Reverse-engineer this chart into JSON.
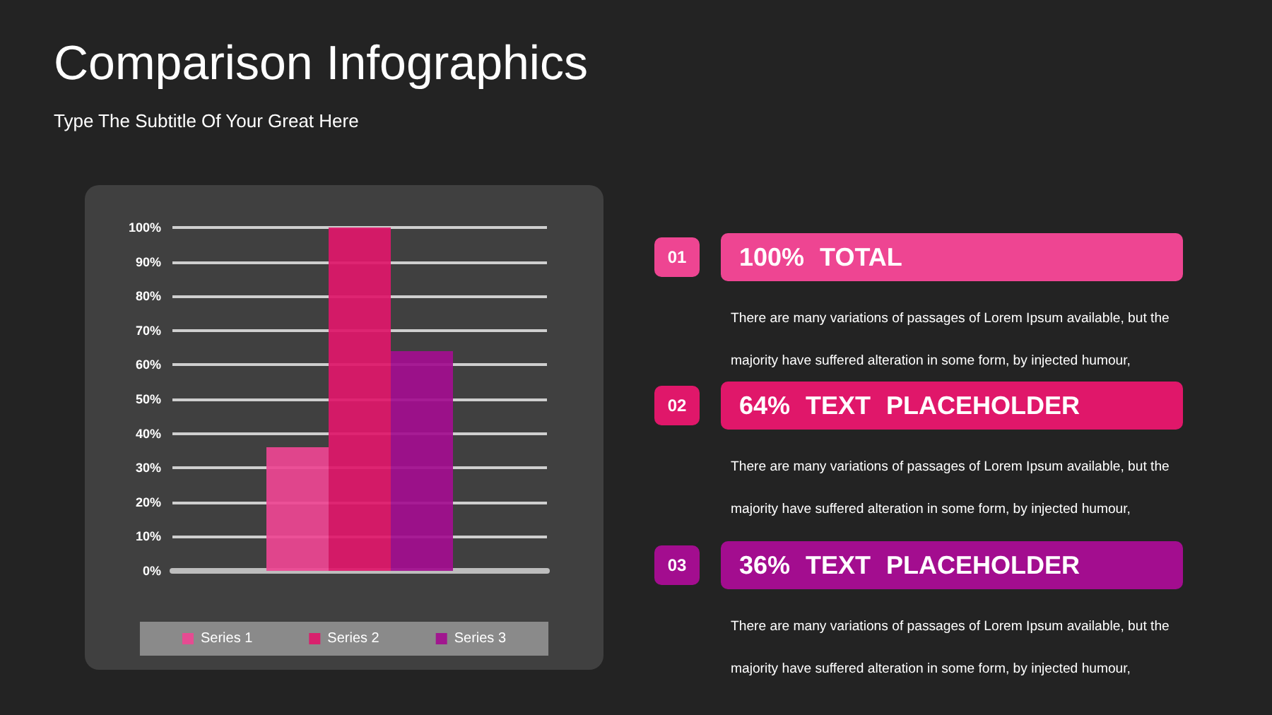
{
  "chart_data": {
    "type": "bar",
    "title": "Comparison Infographics",
    "subtitle": "Type The Subtitle Of Your Great Here",
    "categories": [
      null
    ],
    "series": [
      {
        "name": "Series 1",
        "color": "#ee4592",
        "values": [
          36
        ]
      },
      {
        "name": "Series 2",
        "color": "#e0176a",
        "values": [
          100
        ]
      },
      {
        "name": "Series 3",
        "color": "#a30d8f",
        "values": [
          64
        ]
      }
    ],
    "ylim": [
      0,
      100
    ],
    "yticks": [
      {
        "value": 0,
        "label": "0%"
      },
      {
        "value": 10,
        "label": "10%"
      },
      {
        "value": 20,
        "label": "20%"
      },
      {
        "value": 30,
        "label": "30%"
      },
      {
        "value": 40,
        "label": "40%"
      },
      {
        "value": 50,
        "label": "50%"
      },
      {
        "value": 60,
        "label": "60%"
      },
      {
        "value": 70,
        "label": "70%"
      },
      {
        "value": 80,
        "label": "80%"
      },
      {
        "value": 90,
        "label": "90%"
      },
      {
        "value": 100,
        "label": "100%"
      }
    ],
    "grid": "y",
    "legend": "bottom",
    "annotations": [
      "01",
      "100% TOTAL",
      "There are many variations of passages of Lorem Ipsum available, but the majority have suffered alteration in some form, by injected humour,",
      "02",
      "64% TEXT PLACEHOLDER",
      "There are many variations of passages of Lorem Ipsum available, but the majority have suffered alteration in some form, by injected humour,",
      "03",
      "36% TEXT PLACEHOLDER",
      "There are many variations of passages of Lorem Ipsum available, but the majority have suffered alteration in some form, by injected humour,"
    ]
  }
}
